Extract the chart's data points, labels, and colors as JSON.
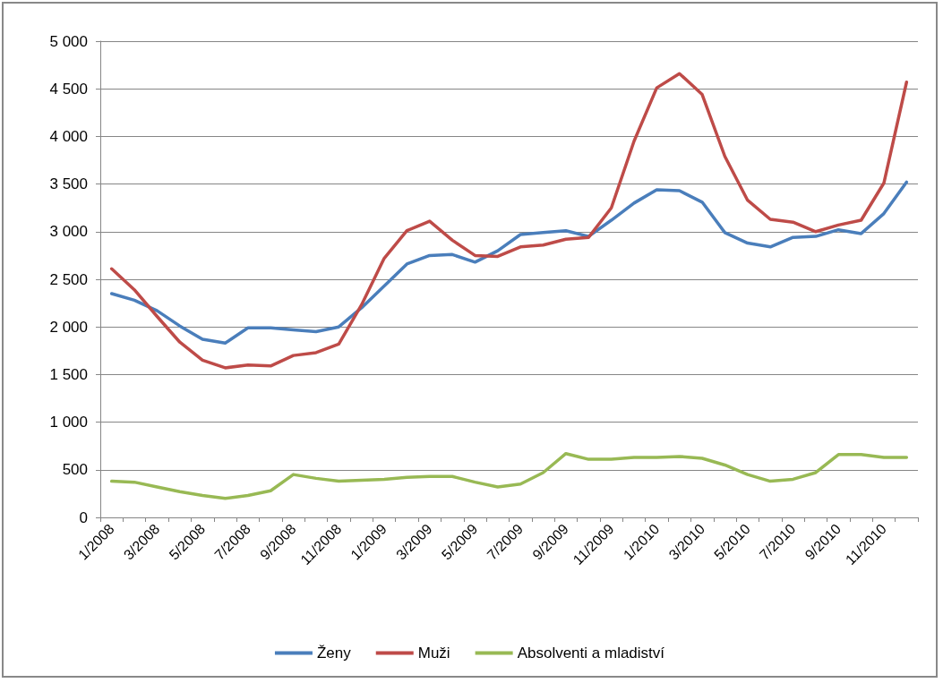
{
  "chart_data": {
    "type": "line",
    "categories": [
      "1/2008",
      null,
      "3/2008",
      null,
      "5/2008",
      null,
      "7/2008",
      null,
      "9/2008",
      null,
      "11/2008",
      null,
      "1/2009",
      null,
      "3/2009",
      null,
      "5/2009",
      null,
      "7/2009",
      null,
      "9/2009",
      null,
      "11/2009",
      null,
      "1/2010",
      null,
      "3/2010",
      null,
      "5/2010",
      null,
      "7/2010",
      null,
      "9/2010",
      null,
      "11/2010",
      null
    ],
    "series": [
      {
        "name": "Ženy",
        "color": "#4a7ebb",
        "values": [
          2350,
          2280,
          2170,
          2010,
          1870,
          1830,
          1990,
          1990,
          1970,
          1950,
          2000,
          2200,
          2430,
          2660,
          2750,
          2760,
          2680,
          2800,
          2970,
          2990,
          3010,
          2950,
          3120,
          3300,
          3440,
          3430,
          3310,
          2990,
          2880,
          2840,
          2940,
          2950,
          3020,
          2980,
          3190,
          3520
        ]
      },
      {
        "name": "Muži",
        "color": "#be4b48",
        "values": [
          2610,
          2390,
          2110,
          1840,
          1650,
          1570,
          1600,
          1590,
          1700,
          1730,
          1820,
          2230,
          2720,
          3010,
          3110,
          2910,
          2750,
          2740,
          2840,
          2860,
          2920,
          2940,
          3250,
          3950,
          4510,
          4660,
          4440,
          3790,
          3330,
          3130,
          3100,
          3000,
          3070,
          3120,
          3510,
          4570
        ]
      },
      {
        "name": "Absolventi a mladiství",
        "color": "#98b954",
        "values": [
          380,
          370,
          320,
          270,
          230,
          200,
          230,
          280,
          450,
          410,
          380,
          390,
          400,
          420,
          430,
          430,
          370,
          320,
          350,
          470,
          670,
          610,
          610,
          630,
          630,
          640,
          620,
          550,
          450,
          380,
          400,
          470,
          660,
          660,
          630,
          630
        ]
      }
    ],
    "ylim": [
      0,
      5000
    ],
    "yticks": [
      0,
      500,
      {
        "value": 1000,
        "label": "1 000"
      },
      {
        "value": 1500,
        "label": "1 500"
      },
      {
        "value": 2000,
        "label": "2 000"
      },
      {
        "value": 2500,
        "label": "2 500"
      },
      {
        "value": 3000,
        "label": "3 000"
      },
      {
        "value": 3500,
        "label": "3 500"
      },
      {
        "value": 4000,
        "label": "4 000"
      },
      {
        "value": 4500,
        "label": "4 500"
      },
      {
        "value": 5000,
        "label": "5 000"
      }
    ],
    "grid": "y",
    "legend": "bottom",
    "marker": "none",
    "line_style": "solid"
  }
}
